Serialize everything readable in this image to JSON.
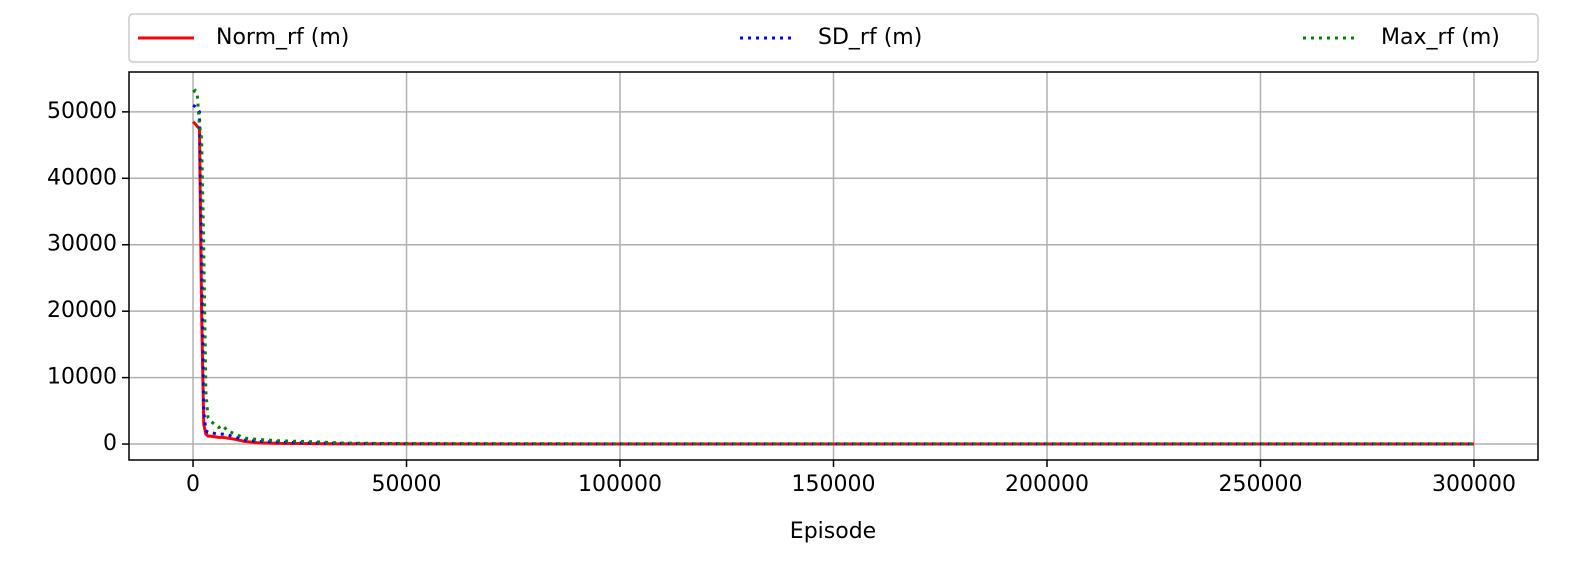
{
  "chart_data": {
    "type": "line",
    "xlabel": "Episode",
    "x": [
      0,
      500,
      1000,
      1500,
      2000,
      2500,
      3000,
      3500,
      4000,
      5000,
      6000,
      7000,
      8000,
      10000,
      12000,
      15000,
      20000,
      25000,
      30000,
      35000,
      50000,
      100000,
      150000,
      200000,
      250000,
      300000
    ],
    "series": [
      {
        "name": "Norm_rf (m)",
        "color": "#ff0000",
        "dash": "solid",
        "values": [
          48500,
          48200,
          47800,
          47500,
          20000,
          3000,
          1500,
          1200,
          1200,
          1100,
          1000,
          1000,
          900,
          700,
          400,
          200,
          100,
          80,
          50,
          30,
          20,
          10,
          10,
          10,
          10,
          10
        ]
      },
      {
        "name": "SD_rf (m)",
        "color": "#0000ff",
        "dash": "dotted",
        "values": [
          51000,
          50800,
          50500,
          50000,
          30000,
          5000,
          2000,
          1800,
          1800,
          1600,
          1500,
          1500,
          1400,
          1000,
          600,
          400,
          300,
          200,
          150,
          100,
          50,
          20,
          20,
          20,
          20,
          20
        ]
      },
      {
        "name": "Max_rf (m)",
        "color": "#008000",
        "dash": "dotted",
        "values": [
          53000,
          53200,
          52500,
          48000,
          46000,
          30000,
          8000,
          4000,
          3500,
          3000,
          2500,
          2800,
          2000,
          1500,
          900,
          700,
          500,
          400,
          300,
          150,
          60,
          30,
          30,
          30,
          30,
          30
        ]
      }
    ],
    "xlim": [
      -15000,
      315000
    ],
    "xticks": [
      0,
      50000,
      100000,
      150000,
      200000,
      250000,
      300000
    ],
    "ylim": [
      -2400,
      56000
    ],
    "yticks": [
      0,
      10000,
      20000,
      30000,
      40000,
      50000
    ],
    "grid": true,
    "legend": "top"
  }
}
